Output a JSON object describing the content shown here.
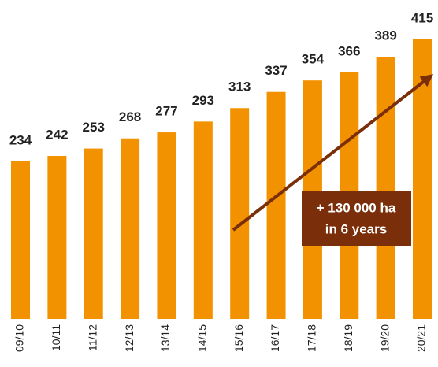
{
  "chart_data": {
    "type": "bar",
    "categories": [
      "09/10",
      "10/11",
      "11/12",
      "12/13",
      "13/14",
      "14/15",
      "15/16",
      "16/17",
      "17/18",
      "18/19",
      "19/20",
      "20/21"
    ],
    "values": [
      234,
      242,
      253,
      268,
      277,
      293,
      313,
      337,
      354,
      366,
      389,
      415
    ],
    "color": "#f39200",
    "annotation": [
      "+ 130 000 ha",
      "in 6 years"
    ]
  }
}
